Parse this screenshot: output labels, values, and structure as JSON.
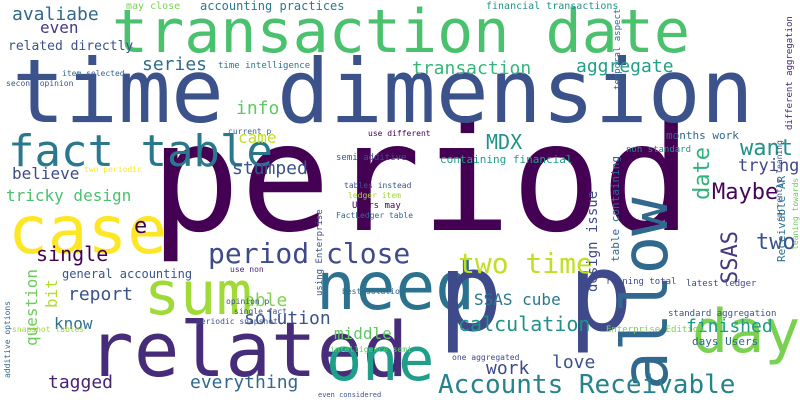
{
  "words": [
    {
      "text": "period",
      "color": "#440154"
    },
    {
      "text": "time dimension",
      "color": "#3b528b"
    },
    {
      "text": "transaction date",
      "color": "#4ac16d"
    },
    {
      "text": "need",
      "color": "#2c728e"
    },
    {
      "text": "p p",
      "color": "#3e4a89"
    },
    {
      "text": "related",
      "color": "#472c7a"
    },
    {
      "text": "allow",
      "color": "#31688e"
    },
    {
      "text": "case",
      "color": "#fde725"
    },
    {
      "text": "sum",
      "color": "#a0da39"
    },
    {
      "text": "one",
      "color": "#1f9e89"
    },
    {
      "text": "day",
      "color": "#7ad151"
    },
    {
      "text": "fact table",
      "color": "#2a788e"
    },
    {
      "text": "Accounts Receivable",
      "color": "#26828e"
    },
    {
      "text": "two time",
      "color": "#c0df25"
    },
    {
      "text": "period close",
      "color": "#3e4a89"
    },
    {
      "text": "calculation",
      "color": "#21918c"
    },
    {
      "text": "transaction",
      "color": "#35b779"
    },
    {
      "text": "aggregate",
      "color": "#1fa187"
    },
    {
      "text": "series",
      "color": "#2f6c8e"
    },
    {
      "text": "info",
      "color": "#5ec962"
    },
    {
      "text": "came",
      "color": "#c2df23"
    },
    {
      "text": "stumped",
      "color": "#3b528b"
    },
    {
      "text": "MDX",
      "color": "#20928c"
    },
    {
      "text": "want",
      "color": "#21918c"
    },
    {
      "text": "trying",
      "color": "#3e4989"
    },
    {
      "text": "date",
      "color": "#2fb47c"
    },
    {
      "text": "Maybe",
      "color": "#450457"
    },
    {
      "text": "two",
      "color": "#3b528b"
    },
    {
      "text": "SSAS",
      "color": "#443983"
    },
    {
      "text": "believe",
      "color": "#3e4a89"
    },
    {
      "text": "tricky design",
      "color": "#4ac16d"
    },
    {
      "text": "single",
      "color": "#440154"
    },
    {
      "text": "bit",
      "color": "#b5de2b"
    },
    {
      "text": "question",
      "color": "#6ccd5a"
    },
    {
      "text": "report",
      "color": "#3b528b"
    },
    {
      "text": "know",
      "color": "#2d708e"
    },
    {
      "text": "able",
      "color": "#7fd34e"
    },
    {
      "text": "solution",
      "color": "#3b528b"
    },
    {
      "text": "middle",
      "color": "#5ec962"
    },
    {
      "text": "SSAS cube",
      "color": "#2a788e"
    },
    {
      "text": "finished",
      "color": "#1f9a8a"
    },
    {
      "text": "work",
      "color": "#3e4a89"
    },
    {
      "text": "love",
      "color": "#3b528b"
    },
    {
      "text": "tagged",
      "color": "#482374"
    },
    {
      "text": "everything",
      "color": "#31688e"
    },
    {
      "text": "avaliabe",
      "color": "#31688e"
    },
    {
      "text": "even",
      "color": "#443983"
    },
    {
      "text": "accounting practices",
      "color": "#2a788e"
    },
    {
      "text": "may close",
      "color": "#7ad151"
    },
    {
      "text": "financial transactions",
      "color": "#20928c"
    },
    {
      "text": "related directly",
      "color": "#3b528b"
    },
    {
      "text": "second opinion",
      "color": "#3b528b"
    },
    {
      "text": "item selected",
      "color": "#31688e"
    },
    {
      "text": "time intelligence",
      "color": "#2c728e"
    },
    {
      "text": "general accounting",
      "color": "#3b528b"
    },
    {
      "text": "containing financial",
      "color": "#1fa187"
    },
    {
      "text": "design issue",
      "color": "#3e4a89"
    },
    {
      "text": "table containing",
      "color": "#31688e"
    },
    {
      "text": "months work",
      "color": "#31688e"
    },
    {
      "text": "non standard",
      "color": "#21918c"
    },
    {
      "text": "currently leaning",
      "color": "#3b528b"
    },
    {
      "text": "Receivable AR",
      "color": "#2c728e"
    },
    {
      "text": "leaning towards",
      "color": "#6ccd5a"
    },
    {
      "text": "latest ledger",
      "color": "#3e4a89"
    },
    {
      "text": "standard aggregation",
      "color": "#3b528b"
    },
    {
      "text": "Enterprise Edition",
      "color": "#7ad151"
    },
    {
      "text": "days Users",
      "color": "#31688e"
    },
    {
      "text": "running total",
      "color": "#3e4a89"
    },
    {
      "text": "temporal aspect",
      "color": "#31688e"
    },
    {
      "text": "different aggregation",
      "color": "#482878"
    },
    {
      "text": "semi additive",
      "color": "#3b528b"
    },
    {
      "text": "use different",
      "color": "#440154"
    },
    {
      "text": "current p",
      "color": "#31688e"
    },
    {
      "text": "two periodic",
      "color": "#fde725"
    },
    {
      "text": "tables instead",
      "color": "#3b528b"
    },
    {
      "text": "ledger item",
      "color": "#a0da39"
    },
    {
      "text": "Users may",
      "color": "#440154"
    },
    {
      "text": "FactLedger table",
      "color": "#31688e"
    },
    {
      "text": "using Enterprise",
      "color": "#3b528b"
    },
    {
      "text": "use non",
      "color": "#482878"
    },
    {
      "text": "best solution",
      "color": "#31688e"
    },
    {
      "text": "opinion p",
      "color": "#3e4a89"
    },
    {
      "text": "single fact",
      "color": "#3b528b"
    },
    {
      "text": "periodic snapshot",
      "color": "#3b528b"
    },
    {
      "text": "additive options",
      "color": "#31688e"
    },
    {
      "text": "snapshot tables",
      "color": "#a0da39"
    },
    {
      "text": "intelligence semi",
      "color": "#5ec962"
    },
    {
      "text": "one aggregated",
      "color": "#3e4a89"
    },
    {
      "text": "even considered",
      "color": "#3b528b"
    },
    {
      "text": "e",
      "color": "#440154"
    }
  ]
}
